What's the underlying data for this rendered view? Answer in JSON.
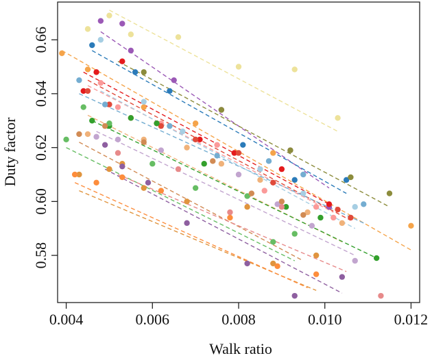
{
  "chart_data": {
    "type": "scatter",
    "title": "",
    "xlabel": "Walk ratio",
    "ylabel": "Duty factor",
    "xlim": [
      0.0038,
      0.0122
    ],
    "ylim": [
      0.5625,
      0.674
    ],
    "x_ticks": [
      0.004,
      0.006,
      0.008,
      0.01,
      0.012
    ],
    "x_tick_labels": [
      "0.004",
      "0.006",
      "0.008",
      "0.010",
      "0.012"
    ],
    "y_ticks": [
      0.58,
      0.6,
      0.62,
      0.64,
      0.66
    ],
    "y_tick_labels": [
      "0.58",
      "0.60",
      "0.62",
      "0.64",
      "0.66"
    ],
    "grid": false,
    "legend": "none",
    "fit_lines_dashed": true,
    "series": [
      {
        "color": "#ede29a",
        "points": [
          [
            0.0045,
            0.664
          ],
          [
            0.005,
            0.669
          ],
          [
            0.0055,
            0.662
          ],
          [
            0.0066,
            0.661
          ],
          [
            0.008,
            0.65
          ],
          [
            0.0093,
            0.649
          ],
          [
            0.0103,
            0.631
          ]
        ],
        "fit": [
          [
            0.005,
            0.671
          ],
          [
            0.0103,
            0.626
          ]
        ]
      },
      {
        "color": "#9b59b6",
        "points": [
          [
            0.0048,
            0.667
          ],
          [
            0.0053,
            0.666
          ],
          [
            0.0055,
            0.656
          ],
          [
            0.0065,
            0.645
          ],
          [
            0.0076,
            0.634
          ],
          [
            0.0092,
            0.619
          ],
          [
            0.0101,
            0.598
          ]
        ],
        "fit": [
          [
            0.0048,
            0.663
          ],
          [
            0.0101,
            0.605
          ]
        ]
      },
      {
        "color": "#2b7bb9",
        "points": [
          [
            0.0046,
            0.658
          ],
          [
            0.0056,
            0.648
          ],
          [
            0.0064,
            0.641
          ],
          [
            0.0081,
            0.621
          ],
          [
            0.0093,
            0.608
          ],
          [
            0.0105,
            0.608
          ]
        ],
        "fit": [
          [
            0.0046,
            0.656
          ],
          [
            0.0105,
            0.603
          ]
        ]
      },
      {
        "color": "#8c8c3c",
        "points": [
          [
            0.0058,
            0.648
          ],
          [
            0.0076,
            0.634
          ],
          [
            0.0092,
            0.619
          ],
          [
            0.0106,
            0.609
          ],
          [
            0.0115,
            0.603
          ]
        ],
        "fit": [
          [
            0.0052,
            0.652
          ],
          [
            0.0115,
            0.598
          ]
        ]
      },
      {
        "color": "#f5a44a",
        "points": [
          [
            0.0039,
            0.655
          ],
          [
            0.0045,
            0.649
          ],
          [
            0.0058,
            0.635
          ],
          [
            0.007,
            0.629
          ],
          [
            0.0088,
            0.618
          ],
          [
            0.012,
            0.591
          ]
        ],
        "fit": [
          [
            0.0039,
            0.656
          ],
          [
            0.012,
            0.582
          ]
        ]
      },
      {
        "color": "#e41a1c",
        "points": [
          [
            0.0044,
            0.641
          ],
          [
            0.0047,
            0.648
          ],
          [
            0.0053,
            0.652
          ],
          [
            0.0061,
            0.629
          ],
          [
            0.0071,
            0.623
          ],
          [
            0.0079,
            0.618
          ],
          [
            0.009,
            0.612
          ],
          [
            0.0101,
            0.599
          ]
        ],
        "fit": [
          [
            0.0044,
            0.648
          ],
          [
            0.0101,
            0.599
          ]
        ]
      },
      {
        "color": "#fb9a99",
        "points": [
          [
            0.0048,
            0.644
          ],
          [
            0.0052,
            0.635
          ],
          [
            0.0062,
            0.629
          ],
          [
            0.0075,
            0.621
          ],
          [
            0.0086,
            0.604
          ],
          [
            0.0098,
            0.598
          ],
          [
            0.0102,
            0.594
          ]
        ],
        "fit": [
          [
            0.0045,
            0.643
          ],
          [
            0.0102,
            0.596
          ]
        ]
      },
      {
        "color": "#e04a3a",
        "points": [
          [
            0.0045,
            0.641
          ],
          [
            0.005,
            0.636
          ],
          [
            0.0055,
            0.631
          ],
          [
            0.0062,
            0.628
          ],
          [
            0.007,
            0.623
          ],
          [
            0.008,
            0.618
          ],
          [
            0.0088,
            0.607
          ],
          [
            0.0103,
            0.597
          ],
          [
            0.0106,
            0.594
          ]
        ],
        "fit": [
          [
            0.0045,
            0.645
          ],
          [
            0.0106,
            0.593
          ]
        ]
      },
      {
        "color": "#74add1",
        "points": [
          [
            0.0043,
            0.645
          ],
          [
            0.0049,
            0.636
          ],
          [
            0.0064,
            0.628
          ],
          [
            0.0075,
            0.617
          ],
          [
            0.0087,
            0.615
          ],
          [
            0.0095,
            0.61
          ],
          [
            0.0109,
            0.599
          ]
        ],
        "fit": [
          [
            0.0043,
            0.64
          ],
          [
            0.0109,
            0.592
          ]
        ]
      },
      {
        "color": "#a6cee3",
        "points": [
          [
            0.0048,
            0.66
          ],
          [
            0.0058,
            0.637
          ],
          [
            0.0067,
            0.626
          ],
          [
            0.0085,
            0.612
          ],
          [
            0.0095,
            0.603
          ],
          [
            0.0107,
            0.598
          ]
        ],
        "fit": [
          [
            0.0048,
            0.641
          ],
          [
            0.0107,
            0.59
          ]
        ]
      },
      {
        "color": "#f0b27a",
        "points": [
          [
            0.0045,
            0.625
          ],
          [
            0.0058,
            0.623
          ],
          [
            0.0068,
            0.62
          ],
          [
            0.0076,
            0.614
          ],
          [
            0.0085,
            0.608
          ],
          [
            0.0096,
            0.596
          ],
          [
            0.0104,
            0.592
          ]
        ],
        "fit": [
          [
            0.0045,
            0.632
          ],
          [
            0.0104,
            0.585
          ]
        ]
      },
      {
        "color": "#33a02c",
        "points": [
          [
            0.0046,
            0.63
          ],
          [
            0.005,
            0.628
          ],
          [
            0.0055,
            0.631
          ],
          [
            0.0061,
            0.629
          ],
          [
            0.0072,
            0.614
          ],
          [
            0.0091,
            0.598
          ],
          [
            0.0099,
            0.594
          ],
          [
            0.0112,
            0.579
          ]
        ],
        "fit": [
          [
            0.0046,
            0.63
          ],
          [
            0.0112,
            0.579
          ]
        ]
      },
      {
        "color": "#c2a5cf",
        "points": [
          [
            0.0047,
            0.624
          ],
          [
            0.0052,
            0.623
          ],
          [
            0.0062,
            0.619
          ],
          [
            0.008,
            0.61
          ],
          [
            0.0089,
            0.599
          ],
          [
            0.0097,
            0.591
          ],
          [
            0.0107,
            0.578
          ]
        ],
        "fit": [
          [
            0.0047,
            0.626
          ],
          [
            0.0107,
            0.58
          ]
        ]
      },
      {
        "color": "#66bd63",
        "points": [
          [
            0.004,
            0.623
          ],
          [
            0.0044,
            0.635
          ],
          [
            0.005,
            0.629
          ],
          [
            0.006,
            0.614
          ],
          [
            0.007,
            0.605
          ],
          [
            0.0082,
            0.602
          ],
          [
            0.0088,
            0.585
          ],
          [
            0.0093,
            0.588
          ]
        ],
        "fit": [
          [
            0.004,
            0.62
          ],
          [
            0.0093,
            0.578
          ]
        ]
      },
      {
        "color": "#d18b54",
        "points": [
          [
            0.0043,
            0.625
          ],
          [
            0.0049,
            0.628
          ],
          [
            0.0058,
            0.622
          ],
          [
            0.0074,
            0.615
          ],
          [
            0.0083,
            0.603
          ],
          [
            0.009,
            0.6
          ],
          [
            0.0095,
            0.595
          ]
        ],
        "fit": [
          [
            0.0043,
            0.622
          ],
          [
            0.0095,
            0.578
          ]
        ]
      },
      {
        "color": "#e0943e",
        "points": [
          [
            0.0043,
            0.61
          ],
          [
            0.005,
            0.612
          ],
          [
            0.0053,
            0.614
          ],
          [
            0.0058,
            0.605
          ],
          [
            0.0068,
            0.6
          ],
          [
            0.0082,
            0.598
          ],
          [
            0.0088,
            0.577
          ],
          [
            0.0098,
            0.58
          ]
        ],
        "fit": [
          [
            0.0043,
            0.604
          ],
          [
            0.0098,
            0.567
          ]
        ]
      },
      {
        "color": "#8e5fa0",
        "points": [
          [
            0.0049,
            0.621
          ],
          [
            0.0053,
            0.613
          ],
          [
            0.0059,
            0.607
          ],
          [
            0.0068,
            0.592
          ],
          [
            0.0082,
            0.577
          ],
          [
            0.0093,
            0.565
          ],
          [
            0.0104,
            0.572
          ]
        ],
        "fit": [
          [
            0.0049,
            0.612
          ],
          [
            0.0104,
            0.566
          ]
        ]
      },
      {
        "color": "#fd8d3c",
        "points": [
          [
            0.0042,
            0.61
          ],
          [
            0.0047,
            0.607
          ],
          [
            0.0053,
            0.609
          ],
          [
            0.0062,
            0.604
          ],
          [
            0.0078,
            0.594
          ],
          [
            0.0089,
            0.576
          ],
          [
            0.0098,
            0.573
          ]
        ],
        "fit": [
          [
            0.0042,
            0.607
          ],
          [
            0.0096,
            0.568
          ]
        ]
      },
      {
        "color": "#e78a8a",
        "points": [
          [
            0.0052,
            0.618
          ],
          [
            0.0066,
            0.612
          ],
          [
            0.0078,
            0.596
          ],
          [
            0.009,
            0.598
          ],
          [
            0.0113,
            0.565
          ]
        ],
        "fit": [
          [
            0.0052,
            0.61
          ],
          [
            0.0105,
            0.574
          ]
        ]
      }
    ]
  }
}
